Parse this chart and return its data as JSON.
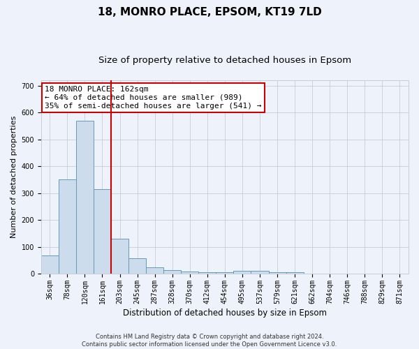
{
  "title1": "18, MONRO PLACE, EPSOM, KT19 7LD",
  "title2": "Size of property relative to detached houses in Epsom",
  "xlabel": "Distribution of detached houses by size in Epsom",
  "ylabel": "Number of detached properties",
  "categories": [
    "36sqm",
    "78sqm",
    "120sqm",
    "161sqm",
    "203sqm",
    "245sqm",
    "287sqm",
    "328sqm",
    "370sqm",
    "412sqm",
    "454sqm",
    "495sqm",
    "537sqm",
    "579sqm",
    "621sqm",
    "662sqm",
    "704sqm",
    "746sqm",
    "788sqm",
    "829sqm",
    "871sqm"
  ],
  "values": [
    68,
    352,
    570,
    315,
    130,
    57,
    25,
    14,
    7,
    5,
    5,
    10,
    10,
    5,
    5,
    0,
    0,
    0,
    0,
    0,
    0
  ],
  "bar_color": "#ccdcec",
  "bar_edge_color": "#6699bb",
  "red_line_x": 3.5,
  "annotation_text": "18 MONRO PLACE: 162sqm\n← 64% of detached houses are smaller (989)\n35% of semi-detached houses are larger (541) →",
  "annotation_box_color": "#ffffff",
  "annotation_box_edge": "#cc0000",
  "red_line_color": "#cc0000",
  "ylim": [
    0,
    720
  ],
  "yticks": [
    0,
    100,
    200,
    300,
    400,
    500,
    600,
    700
  ],
  "footer": "Contains HM Land Registry data © Crown copyright and database right 2024.\nContains public sector information licensed under the Open Government Licence v3.0.",
  "bg_color": "#eef2fa",
  "grid_color": "#c8ccd8",
  "title1_fontsize": 11,
  "title2_fontsize": 9.5,
  "xlabel_fontsize": 8.5,
  "ylabel_fontsize": 8,
  "tick_fontsize": 7,
  "annot_fontsize": 8,
  "footer_fontsize": 6
}
